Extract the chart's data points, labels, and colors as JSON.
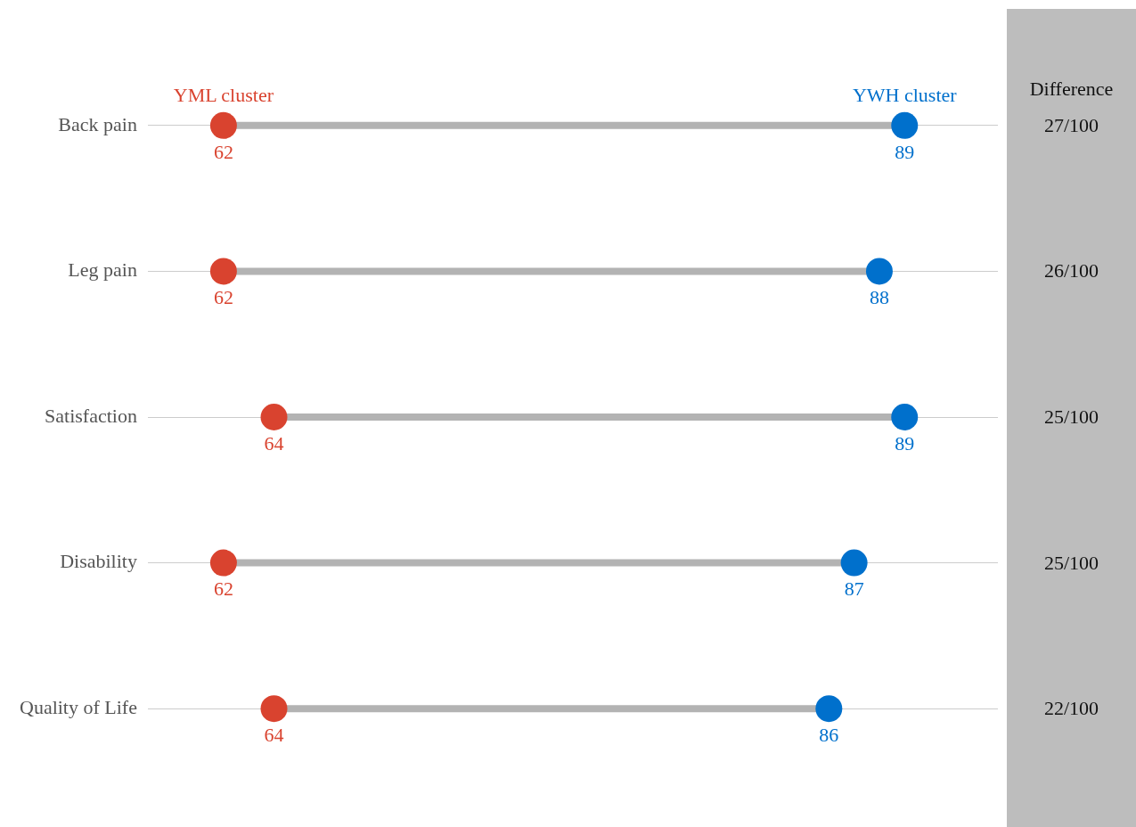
{
  "chart_data": {
    "type": "scatter",
    "orientation": "horizontal",
    "categories": [
      "Back pain",
      "Leg pain",
      "Satisfaction",
      "Disability",
      "Quality of Life"
    ],
    "xlim": [
      59,
      92.7
    ],
    "tick_labels": "y",
    "grid": "y",
    "legend": false,
    "marker": "circle",
    "series": [
      {
        "name": "YML cluster",
        "color": "#d9432f",
        "values": [
          62,
          62,
          64,
          62,
          64
        ],
        "value_labels": [
          "62",
          "62",
          "64",
          "62",
          "64"
        ]
      },
      {
        "name": "YWH cluster",
        "color": "#0070cc",
        "values": [
          89,
          88,
          89,
          87,
          86
        ],
        "value_labels": [
          "89",
          "88",
          "89",
          "87",
          "86"
        ]
      }
    ],
    "annotations": [
      "Difference",
      "27/100",
      "26/100",
      "25/100",
      "25/100",
      "22/100"
    ]
  }
}
